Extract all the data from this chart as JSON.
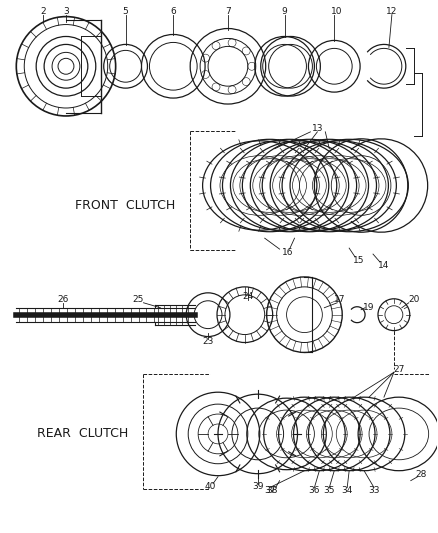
{
  "background_color": "#ffffff",
  "line_color": "#1a1a1a",
  "front_clutch_label": "FRONT  CLUTCH",
  "rear_clutch_label": "REAR  CLUTCH",
  "figsize": [
    4.38,
    5.33
  ],
  "dpi": 100
}
